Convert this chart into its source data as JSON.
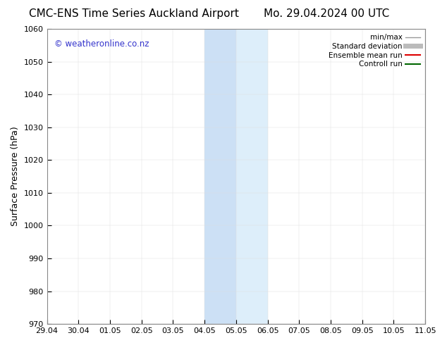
{
  "title_left": "CMC-ENS Time Series Auckland Airport",
  "title_right": "Mo. 29.04.2024 00 UTC",
  "ylabel": "Surface Pressure (hPa)",
  "ylim": [
    970,
    1060
  ],
  "yticks": [
    970,
    980,
    990,
    1000,
    1010,
    1020,
    1030,
    1040,
    1050,
    1060
  ],
  "xticks_labels": [
    "29.04",
    "30.04",
    "01.05",
    "02.05",
    "03.05",
    "04.05",
    "05.05",
    "06.05",
    "07.05",
    "08.05",
    "09.05",
    "10.05",
    "11.05"
  ],
  "watermark": "© weatheronline.co.nz",
  "watermark_color": "#3333cc",
  "bg_color": "#ffffff",
  "plot_bg_color": "#ffffff",
  "shaded_band1_color": "#cce0f5",
  "shaded_band2_color": "#ddeefa",
  "legend_items": [
    {
      "label": "min/max",
      "color": "#999999",
      "lw": 1.0,
      "style": "solid"
    },
    {
      "label": "Standard deviation",
      "color": "#bbbbbb",
      "lw": 5,
      "style": "solid"
    },
    {
      "label": "Ensemble mean run",
      "color": "#dd0000",
      "lw": 1.5,
      "style": "solid"
    },
    {
      "label": "Controll run",
      "color": "#006600",
      "lw": 1.5,
      "style": "solid"
    }
  ],
  "title_fontsize": 11,
  "tick_label_fontsize": 8,
  "ylabel_fontsize": 9,
  "spine_color": "#888888"
}
